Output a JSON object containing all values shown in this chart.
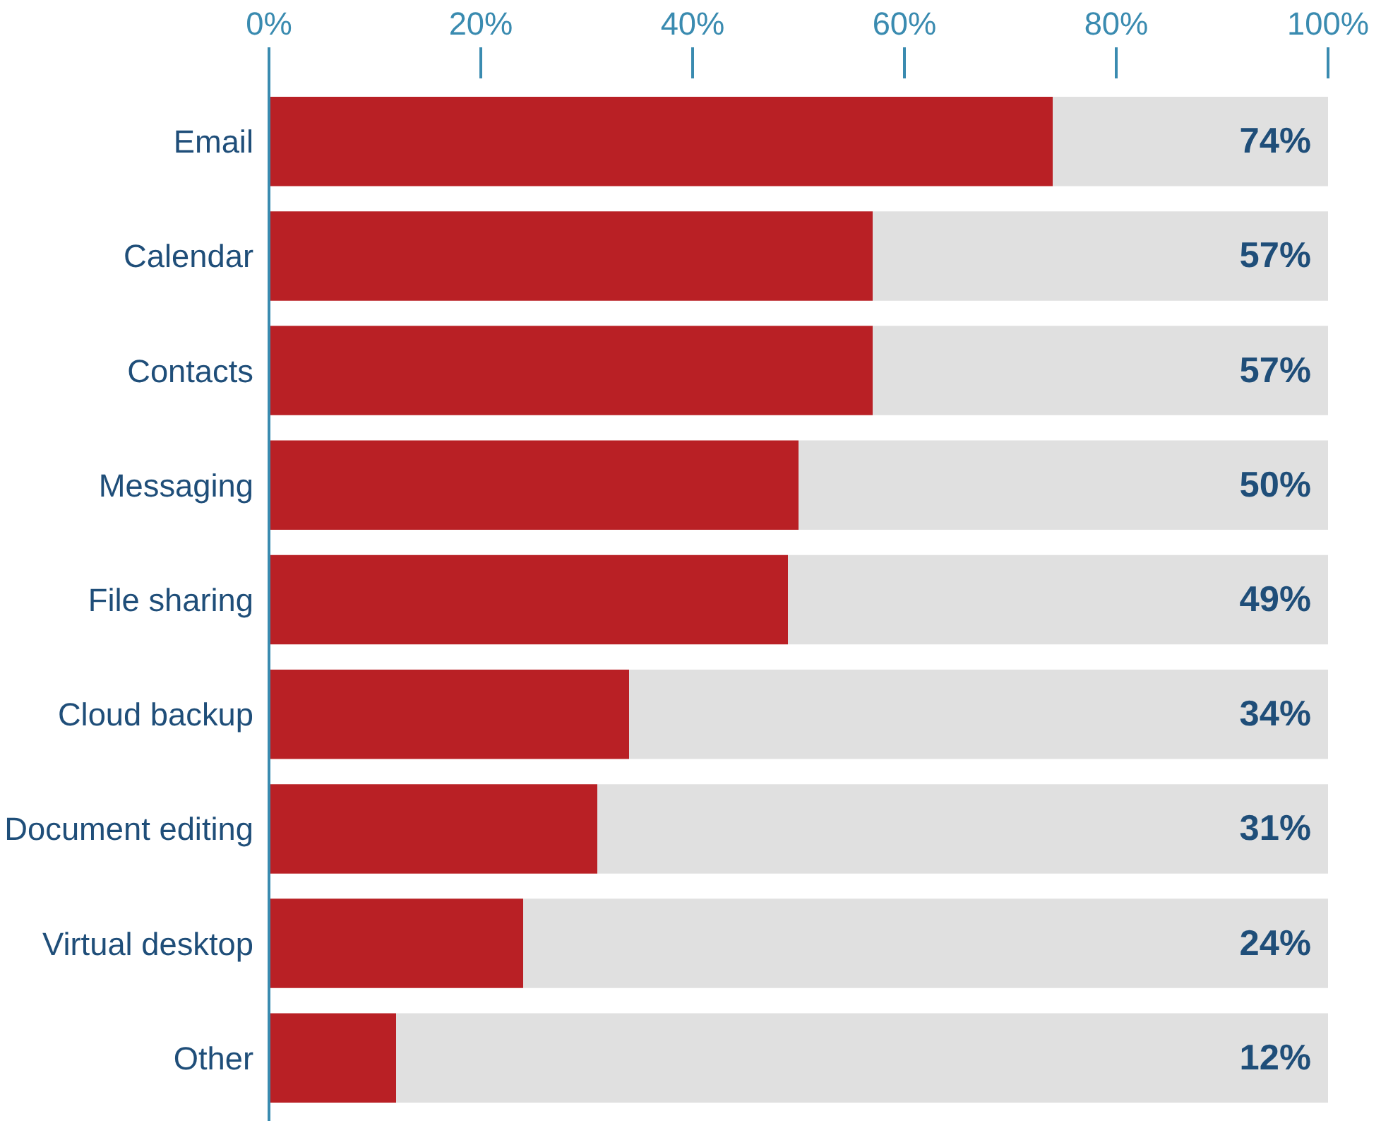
{
  "chart_data": {
    "type": "bar",
    "orientation": "horizontal",
    "stacked": true,
    "categories": [
      "Email",
      "Calendar",
      "Contacts",
      "Messaging",
      "File sharing",
      "Cloud backup",
      "Document editing",
      "Virtual desktop",
      "Other"
    ],
    "series": [
      {
        "color": "#b92025",
        "values": [
          74,
          57,
          57,
          50,
          49,
          34,
          31,
          24,
          12
        ]
      },
      {
        "color": "#e0e0e0",
        "values": [
          26,
          43,
          43,
          50,
          51,
          66,
          69,
          76,
          88
        ]
      }
    ],
    "annotations": [
      "74%",
      "57%",
      "57%",
      "50%",
      "49%",
      "34%",
      "31%",
      "24%",
      "12%"
    ],
    "xlim": [
      0,
      100
    ],
    "xticks": [
      {
        "value": 0,
        "label": "0%"
      },
      {
        "value": 20,
        "label": "20%"
      },
      {
        "value": 40,
        "label": "40%"
      },
      {
        "value": 60,
        "label": "60%"
      },
      {
        "value": 80,
        "label": "80%"
      },
      {
        "value": 100,
        "label": "100%"
      }
    ],
    "grid": false,
    "legend": false
  }
}
